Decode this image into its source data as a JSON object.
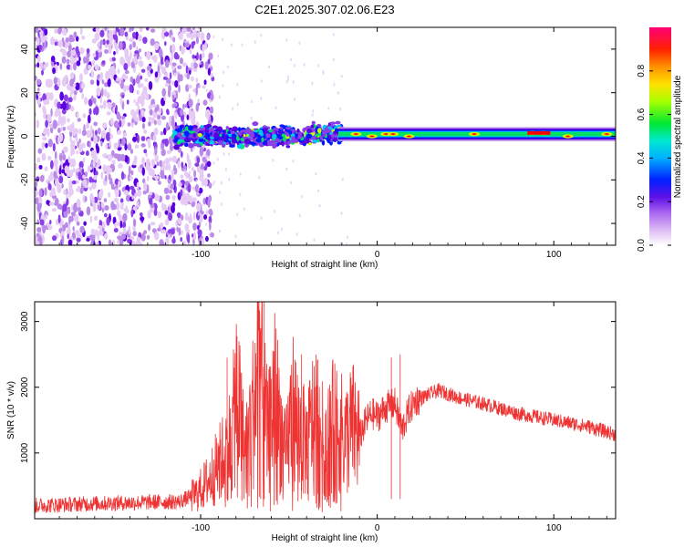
{
  "title": "C2E1.2025.307.02.06.E23",
  "top_panel": {
    "type": "heatmap",
    "xlabel": "Height of straight line (km)",
    "ylabel": "Frequency (Hz)",
    "xlim": [
      -194,
      135
    ],
    "ylim": [
      -50,
      50
    ],
    "xticks": [
      -100,
      0,
      100
    ],
    "yticks": [
      -40,
      -20,
      0,
      20,
      40
    ],
    "colorbar_label": "Normalized spectral amplitude",
    "colorbar_ticks": [
      0.0,
      0.2,
      0.4,
      0.6,
      0.8
    ],
    "colorbar_range": [
      0,
      1
    ],
    "colors": [
      "#e6ccf5",
      "#b98ae8",
      "#8a3ee8",
      "#5a00e0",
      "#0018ff",
      "#00c8f0",
      "#00e060",
      "#ccff00",
      "#ff8800",
      "#ff0000"
    ]
  },
  "bottom_panel": {
    "type": "line",
    "xlabel": "Height of straight line (km)",
    "ylabel": "SNR (10 * v/v)",
    "xlim": [
      -194,
      135
    ],
    "ylim": [
      0,
      3300
    ],
    "xticks": [
      -100,
      0,
      100
    ],
    "yticks": [
      1000,
      2000,
      3000
    ],
    "line_color": "#ee3333",
    "series": [
      {
        "name": "SNR",
        "x": [
          -194,
          -160,
          -130,
          -112,
          -102,
          -95,
          -88,
          -82,
          -80,
          -75,
          -70,
          -67,
          -62,
          -58,
          -52,
          -48,
          -44,
          -40,
          -35,
          -30,
          -26,
          -22,
          -18,
          -14,
          -10,
          -6,
          -3,
          0,
          5,
          10,
          14,
          18,
          22,
          26,
          30,
          35,
          45,
          60,
          80,
          100,
          120,
          135
        ],
        "y": [
          200,
          230,
          250,
          260,
          380,
          600,
          900,
          1250,
          2000,
          1000,
          1700,
          2500,
          1200,
          1900,
          900,
          1700,
          1300,
          1100,
          1650,
          1100,
          1400,
          1350,
          1200,
          1400,
          1250,
          1500,
          1600,
          1550,
          1700,
          1750,
          1350,
          1650,
          1800,
          1850,
          1900,
          1950,
          1850,
          1750,
          1600,
          1500,
          1400,
          1280
        ]
      }
    ]
  }
}
